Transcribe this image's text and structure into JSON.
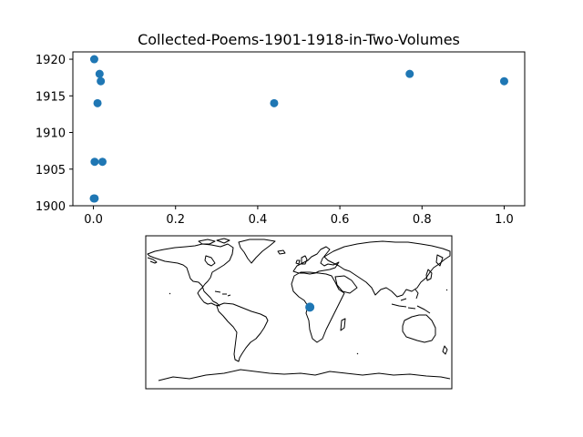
{
  "chart_data": [
    {
      "type": "scatter",
      "title": "Collected-Poems-1901-1918-in-Two-Volumes",
      "xlabel": "",
      "ylabel": "",
      "xlim": [
        -0.05,
        1.05
      ],
      "ylim": [
        1900,
        1921
      ],
      "xticks": [
        {
          "value": 0.0,
          "label": "0.0"
        },
        {
          "value": 0.2,
          "label": "0.2"
        },
        {
          "value": 0.4,
          "label": "0.4"
        },
        {
          "value": 0.6,
          "label": "0.6"
        },
        {
          "value": 0.8,
          "label": "0.8"
        },
        {
          "value": 1.0,
          "label": "1.0"
        }
      ],
      "yticks": [
        {
          "value": 1900,
          "label": "1900"
        },
        {
          "value": 1905,
          "label": "1905"
        },
        {
          "value": 1910,
          "label": "1910"
        },
        {
          "value": 1915,
          "label": "1915"
        },
        {
          "value": 1920,
          "label": "1920"
        }
      ],
      "grid": false,
      "marker_color": "#1f77b4",
      "points": [
        {
          "x": 0.002,
          "y": 1920
        },
        {
          "x": 0.015,
          "y": 1918
        },
        {
          "x": 0.018,
          "y": 1917
        },
        {
          "x": 0.01,
          "y": 1914
        },
        {
          "x": 0.003,
          "y": 1906
        },
        {
          "x": 0.022,
          "y": 1906
        },
        {
          "x": 0.001,
          "y": 1901
        },
        {
          "x": 0.003,
          "y": 1901
        },
        {
          "x": 0.44,
          "y": 1914
        },
        {
          "x": 0.77,
          "y": 1918
        },
        {
          "x": 1.0,
          "y": 1917
        }
      ]
    },
    {
      "type": "map",
      "projection": "equirectangular",
      "extent": {
        "lon": [
          -180,
          180
        ],
        "lat": [
          -90,
          90
        ]
      },
      "coastline_color": "#000000",
      "marker_color": "#1f77b4",
      "points": [
        {
          "lon": 13,
          "lat": 6
        }
      ]
    }
  ]
}
